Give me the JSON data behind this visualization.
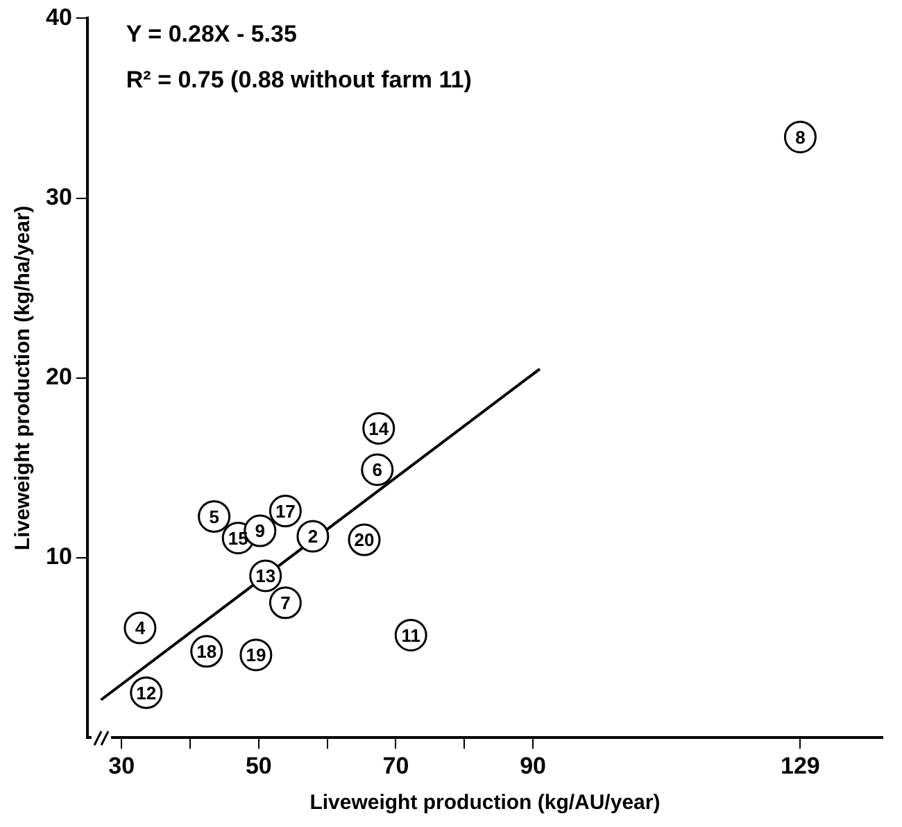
{
  "chart_data": {
    "type": "scatter",
    "xlabel": "Liveweight production (kg/AU/year)",
    "ylabel": "Liveweight production (kg/ha/year)",
    "annotations": [
      "Y = 0.28X - 5.35",
      "R² = 0.75 (0.88 without farm 11)",
      {
        "text": "4",
        "x": 32.7,
        "y": 6.1
      },
      {
        "text": "12",
        "x": 33.6,
        "y": 2.5
      },
      {
        "text": "18",
        "x": 42.4,
        "y": 4.8
      },
      {
        "text": "19",
        "x": 49.6,
        "y": 4.6
      },
      {
        "text": "5",
        "x": 43.5,
        "y": 12.3
      },
      {
        "text": "15",
        "x": 47.0,
        "y": 11.1
      },
      {
        "text": "9",
        "x": 50.2,
        "y": 11.5
      },
      {
        "text": "17",
        "x": 53.9,
        "y": 12.6
      },
      {
        "text": "13",
        "x": 51.0,
        "y": 9.0
      },
      {
        "text": "7",
        "x": 53.9,
        "y": 7.5
      },
      {
        "text": "2",
        "x": 57.9,
        "y": 11.2
      },
      {
        "text": "20",
        "x": 65.4,
        "y": 11.0
      },
      {
        "text": "14",
        "x": 67.5,
        "y": 17.2
      },
      {
        "text": "6",
        "x": 67.3,
        "y": 14.9
      },
      {
        "text": "11",
        "x": 72.2,
        "y": 5.7
      },
      {
        "text": "8",
        "x": 129,
        "y": 33.4
      }
    ],
    "xlim": [
      25,
      141
    ],
    "ylim": [
      0,
      40
    ],
    "xticks": [
      30,
      {
        "value": 40,
        "label": null
      },
      50,
      {
        "value": 60,
        "label": null
      },
      70,
      {
        "value": 80,
        "label": null
      },
      90,
      129
    ],
    "yticks": [
      10,
      20,
      30,
      40
    ],
    "grid": false,
    "legend": false,
    "marker": "circle",
    "series": [
      {
        "color": "#000000",
        "x": [
          32.7,
          33.6,
          42.4,
          49.6,
          43.5,
          47.0,
          50.2,
          53.9,
          51.0,
          53.9,
          57.9,
          65.4,
          67.5,
          67.3,
          72.2,
          129
        ],
        "values": [
          6.1,
          2.5,
          4.8,
          4.6,
          12.3,
          11.1,
          11.5,
          12.6,
          9.0,
          7.5,
          11.2,
          11.0,
          17.2,
          14.9,
          5.7,
          33.4
        ]
      },
      {
        "type": "line",
        "color": "#000000",
        "x": [
          27,
          91
        ],
        "values": [
          2.1,
          20.5
        ],
        "marker": "none",
        "line_style": "solid"
      }
    ]
  }
}
